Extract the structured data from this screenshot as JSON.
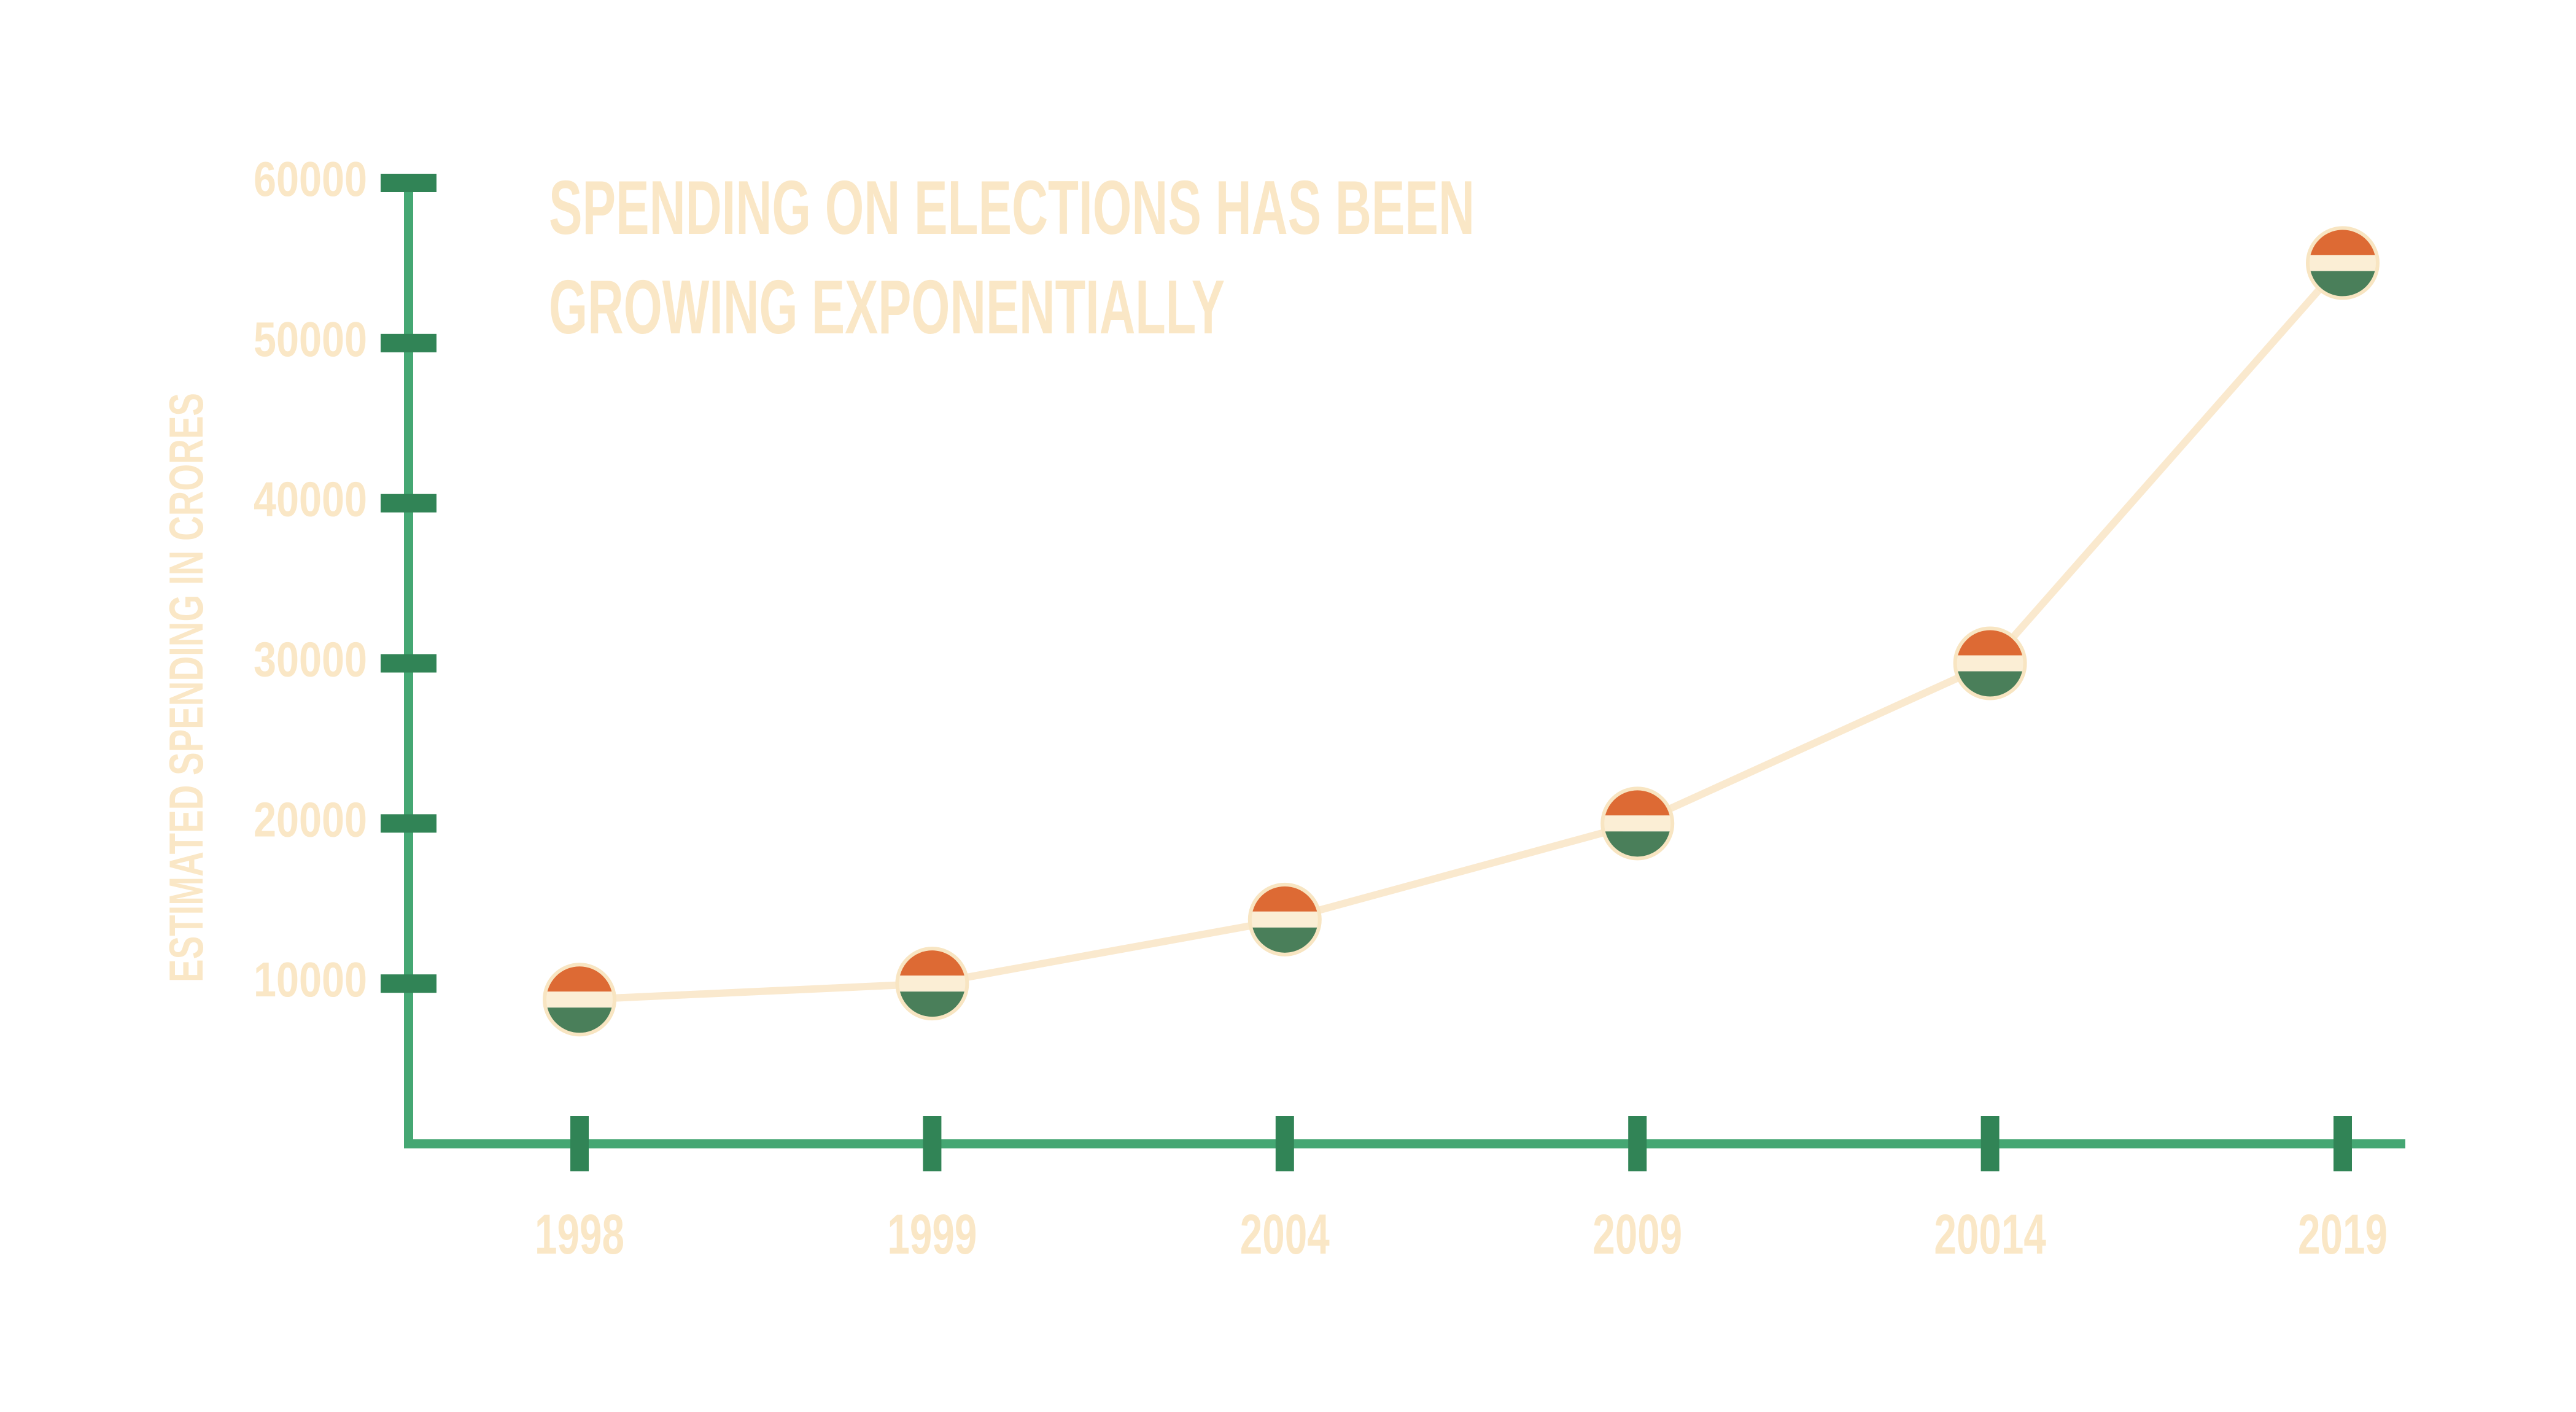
{
  "title": {
    "line1": "SPENDING ON ELECTIONS HAS BEEN",
    "line2": "GROWING EXPONENTIALLY"
  },
  "y_axis": {
    "label": "ESTIMATED SPENDING IN CRORES",
    "ticks": [
      "10000",
      "20000",
      "30000",
      "40000",
      "50000",
      "60000"
    ]
  },
  "x_axis": {
    "ticks": [
      "1998",
      "1999",
      "2004",
      "2009",
      "20014",
      "2019"
    ]
  },
  "chart_data": {
    "type": "line",
    "title": "SPENDING ON ELECTIONS HAS BEEN GROWING EXPONENTIALLY",
    "xlabel": "",
    "ylabel": "ESTIMATED SPENDING IN CRORES",
    "categories": [
      "1998",
      "1999",
      "2004",
      "2009",
      "20014",
      "2019"
    ],
    "values": [
      9000,
      10000,
      14000,
      20000,
      30000,
      55000
    ],
    "ylim": [
      0,
      60000
    ],
    "yticks": [
      10000,
      20000,
      30000,
      40000,
      50000,
      60000
    ],
    "grid": false,
    "legend": false,
    "marker": "india-flag-circle"
  },
  "colors": {
    "background": "#FFFFFF",
    "axis_line_green": "#45A773",
    "tick_dark_green": "#318456",
    "cream_text": "#FAE7C6",
    "cream_line": "#FAE9CE",
    "flag_band_cream": "#FBEED5",
    "flag_ring_cream": "#F8E5C2",
    "flag_orange": "#DD6A34",
    "flag_green": "#4A7F5A"
  }
}
